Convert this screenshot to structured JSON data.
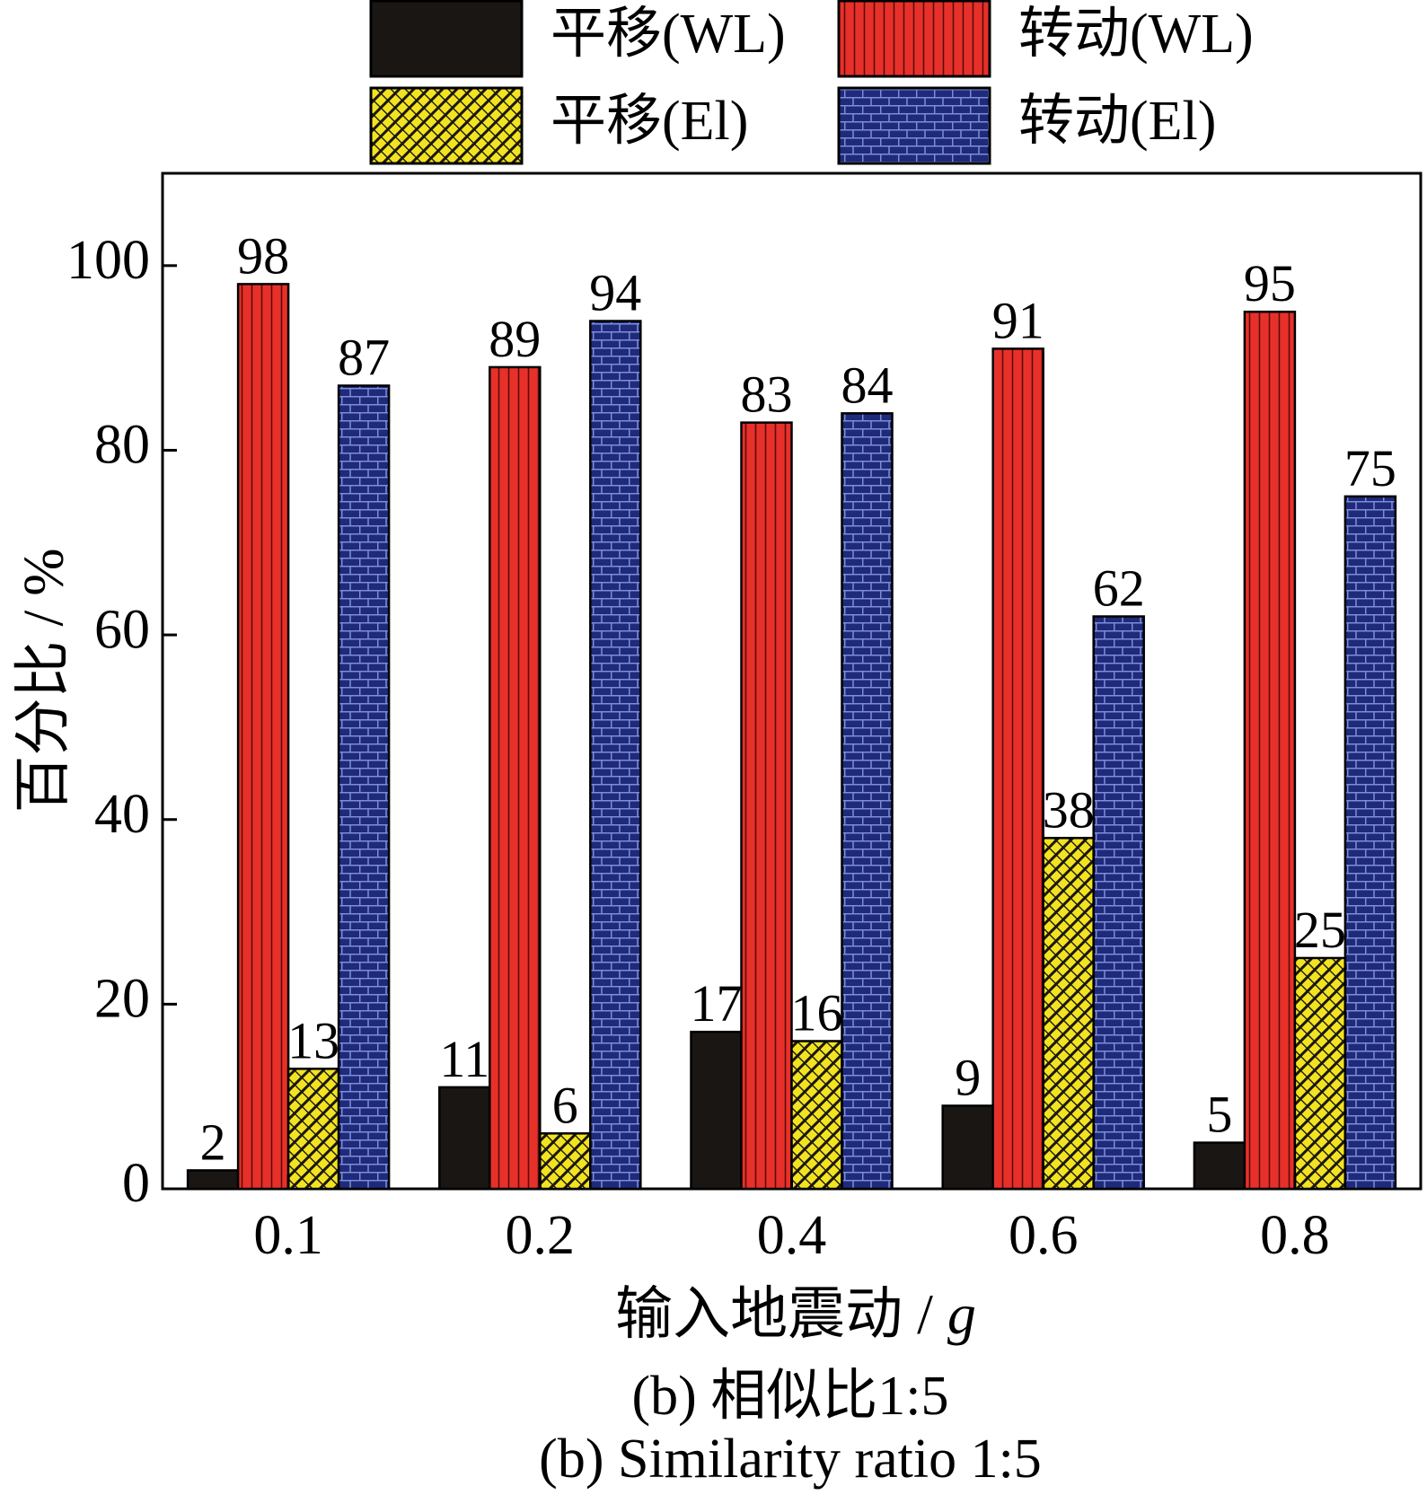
{
  "chart_data": {
    "type": "bar",
    "categories": [
      "0.1",
      "0.2",
      "0.4",
      "0.6",
      "0.8"
    ],
    "series": [
      {
        "name": "平移(WL)",
        "values": [
          2,
          11,
          17,
          9,
          5
        ],
        "color": "#1a1614",
        "pattern": "solid"
      },
      {
        "name": "转动(WL)",
        "values": [
          98,
          89,
          83,
          91,
          95
        ],
        "color": "#e8302a",
        "pattern": "vertical-lines"
      },
      {
        "name": "平移(El)",
        "values": [
          13,
          6,
          16,
          38,
          25
        ],
        "color": "#f2e320",
        "pattern": "crosshatch"
      },
      {
        "name": "转动(El)",
        "values": [
          87,
          94,
          84,
          62,
          75
        ],
        "color": "#1f2a7a",
        "pattern": "brick"
      }
    ],
    "xlabel": "输入地震动 / ",
    "xlabel_unit": "g",
    "ylabel": "百分比 / %",
    "ylim": [
      0,
      110
    ],
    "yticks": [
      "0",
      "20",
      "40",
      "60",
      "80",
      "100"
    ],
    "grid": false,
    "legend_position": "top"
  },
  "captions": [
    "(b) 相似比1:5",
    "(b) Similarity ratio 1:5"
  ]
}
